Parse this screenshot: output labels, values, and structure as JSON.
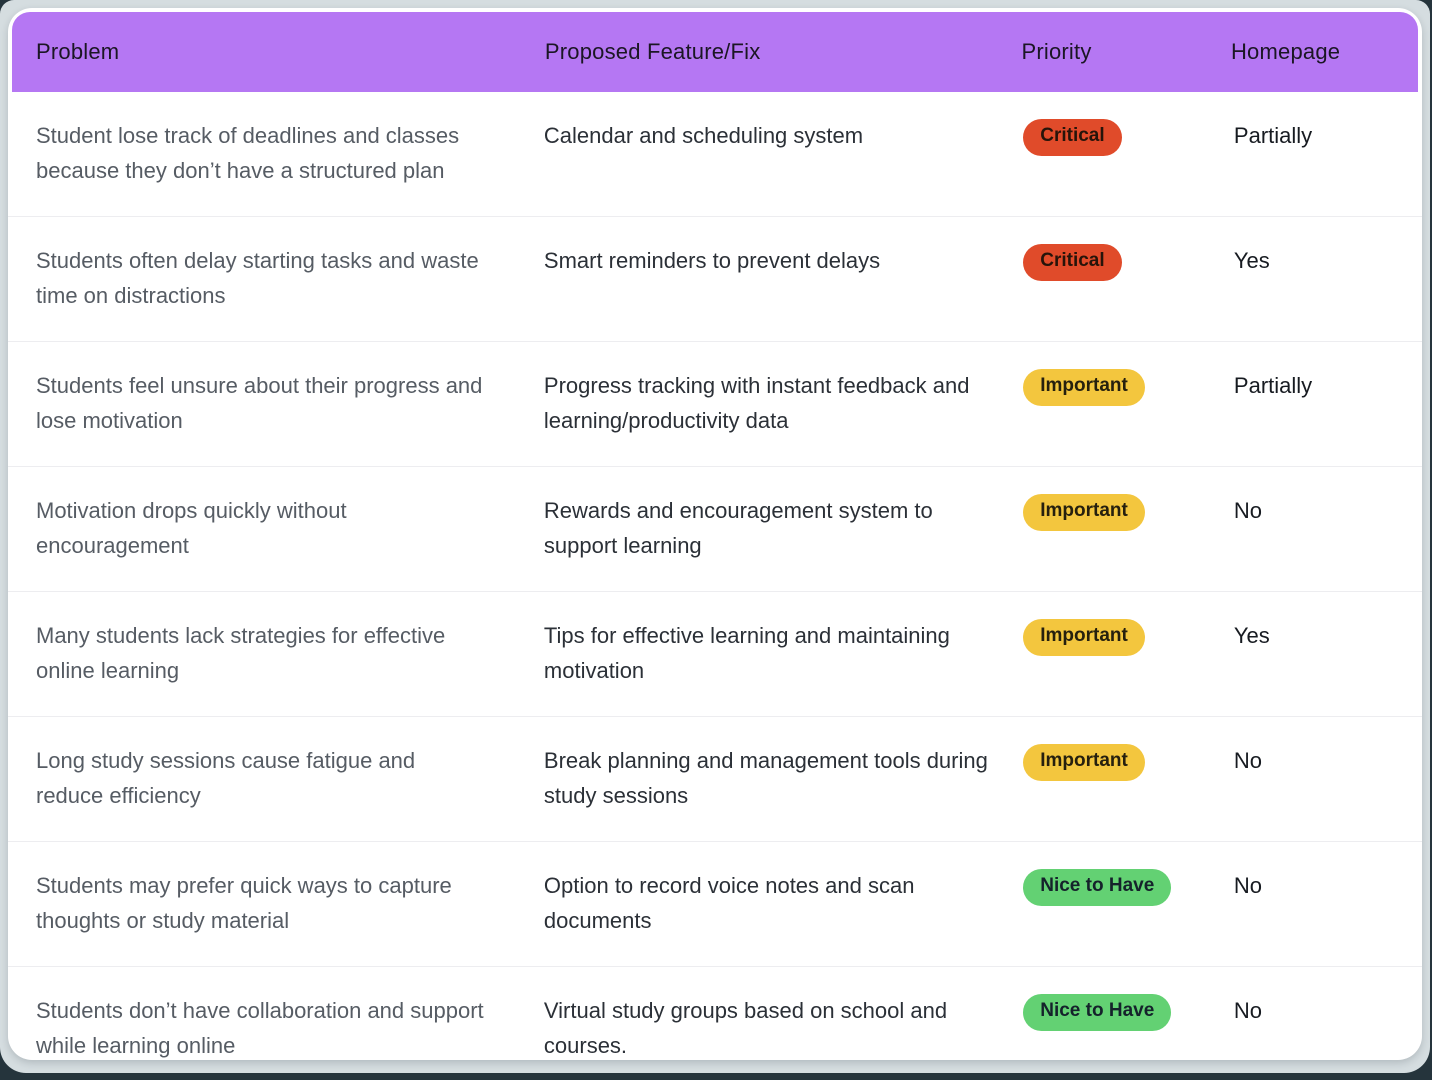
{
  "page": {
    "backdrop_color": "#25343c",
    "surface_color": "#d5dde0",
    "card_color": "#ffffff",
    "row_divider_color": "#ededf0"
  },
  "header": {
    "background_color": "#b577f3",
    "text_color": "#1b1624",
    "columns": [
      {
        "label": "Problem"
      },
      {
        "label": "Proposed Feature/Fix"
      },
      {
        "label": "Priority"
      },
      {
        "label": "Homepage"
      }
    ]
  },
  "table": {
    "rows": [
      {
        "problem": "Student lose track of deadlines and classes because they don’t have a structured plan",
        "feature": "Calendar and scheduling system",
        "priority": "Critical",
        "homepage": "Partially"
      },
      {
        "problem": "Students often delay starting tasks and waste time on distractions",
        "feature": "Smart reminders to prevent delays",
        "priority": "Critical",
        "homepage": "Yes"
      },
      {
        "problem": "Students feel unsure about their progress and lose motivation",
        "feature": "Progress tracking with instant feedback and learning/productivity data",
        "priority": "Important",
        "homepage": "Partially"
      },
      {
        "problem": "Motivation drops quickly without encouragement",
        "feature": "Rewards and encouragement system to support learning",
        "priority": "Important",
        "homepage": "No"
      },
      {
        "problem": "Many students lack strategies for effective online learning",
        "feature": "Tips for effective learning and maintaining motivation",
        "priority": "Important",
        "homepage": "Yes"
      },
      {
        "problem": "Long study sessions cause fatigue and reduce efficiency",
        "feature": "Break planning and management tools during study sessions",
        "priority": "Important",
        "homepage": "No"
      },
      {
        "problem": "Students may prefer quick ways to capture thoughts or study material",
        "feature": "Option to record voice notes and scan documents",
        "priority": "Nice to Have",
        "homepage": "No"
      },
      {
        "problem": "Students don’t have collaboration and support while learning online",
        "feature": "Virtual study groups based on school and courses.",
        "priority": "Nice to Have",
        "homepage": "No"
      }
    ],
    "priority_styles": {
      "Critical": {
        "bg": "#e04b2a",
        "fg": "#26140a"
      },
      "Important": {
        "bg": "#f3c63e",
        "fg": "#26200e"
      },
      "Nice to Have": {
        "bg": "#63d173",
        "fg": "#15222b"
      }
    }
  }
}
